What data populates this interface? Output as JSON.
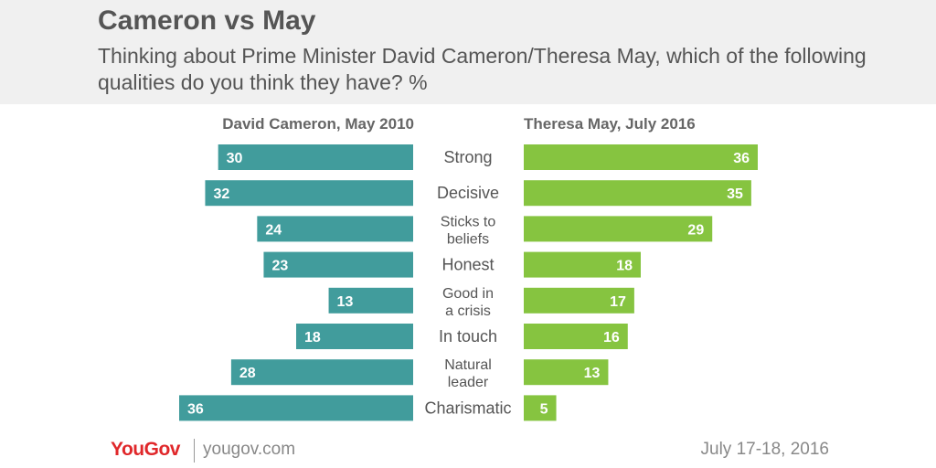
{
  "title": "Cameron vs May",
  "subtitle": "Thinking about Prime Minister David Cameron/Theresa May, which of the following qualities do you think they have? %",
  "chart_data": {
    "type": "bar",
    "orientation": "horizontal-diverging",
    "categories": [
      [
        "Strong"
      ],
      [
        "Decisive"
      ],
      [
        "Sticks to",
        "beliefs"
      ],
      [
        "Honest"
      ],
      [
        "Good in",
        "a crisis"
      ],
      [
        "In touch"
      ],
      [
        "Natural",
        "leader"
      ],
      [
        "Charismatic"
      ]
    ],
    "series": [
      {
        "name": "David Cameron, May 2010",
        "side": "left",
        "color": "#419c9c",
        "values": [
          30,
          32,
          24,
          23,
          13,
          18,
          28,
          36
        ]
      },
      {
        "name": "Theresa May, July 2016",
        "side": "right",
        "color": "#86c440",
        "values": [
          36,
          35,
          29,
          18,
          17,
          16,
          13,
          5
        ]
      }
    ],
    "xlim": [
      0,
      36
    ],
    "grid": false,
    "data_labels": true
  },
  "footer": {
    "logo": "YouGov",
    "url": "yougov.com",
    "date": "July 17-18, 2016"
  }
}
